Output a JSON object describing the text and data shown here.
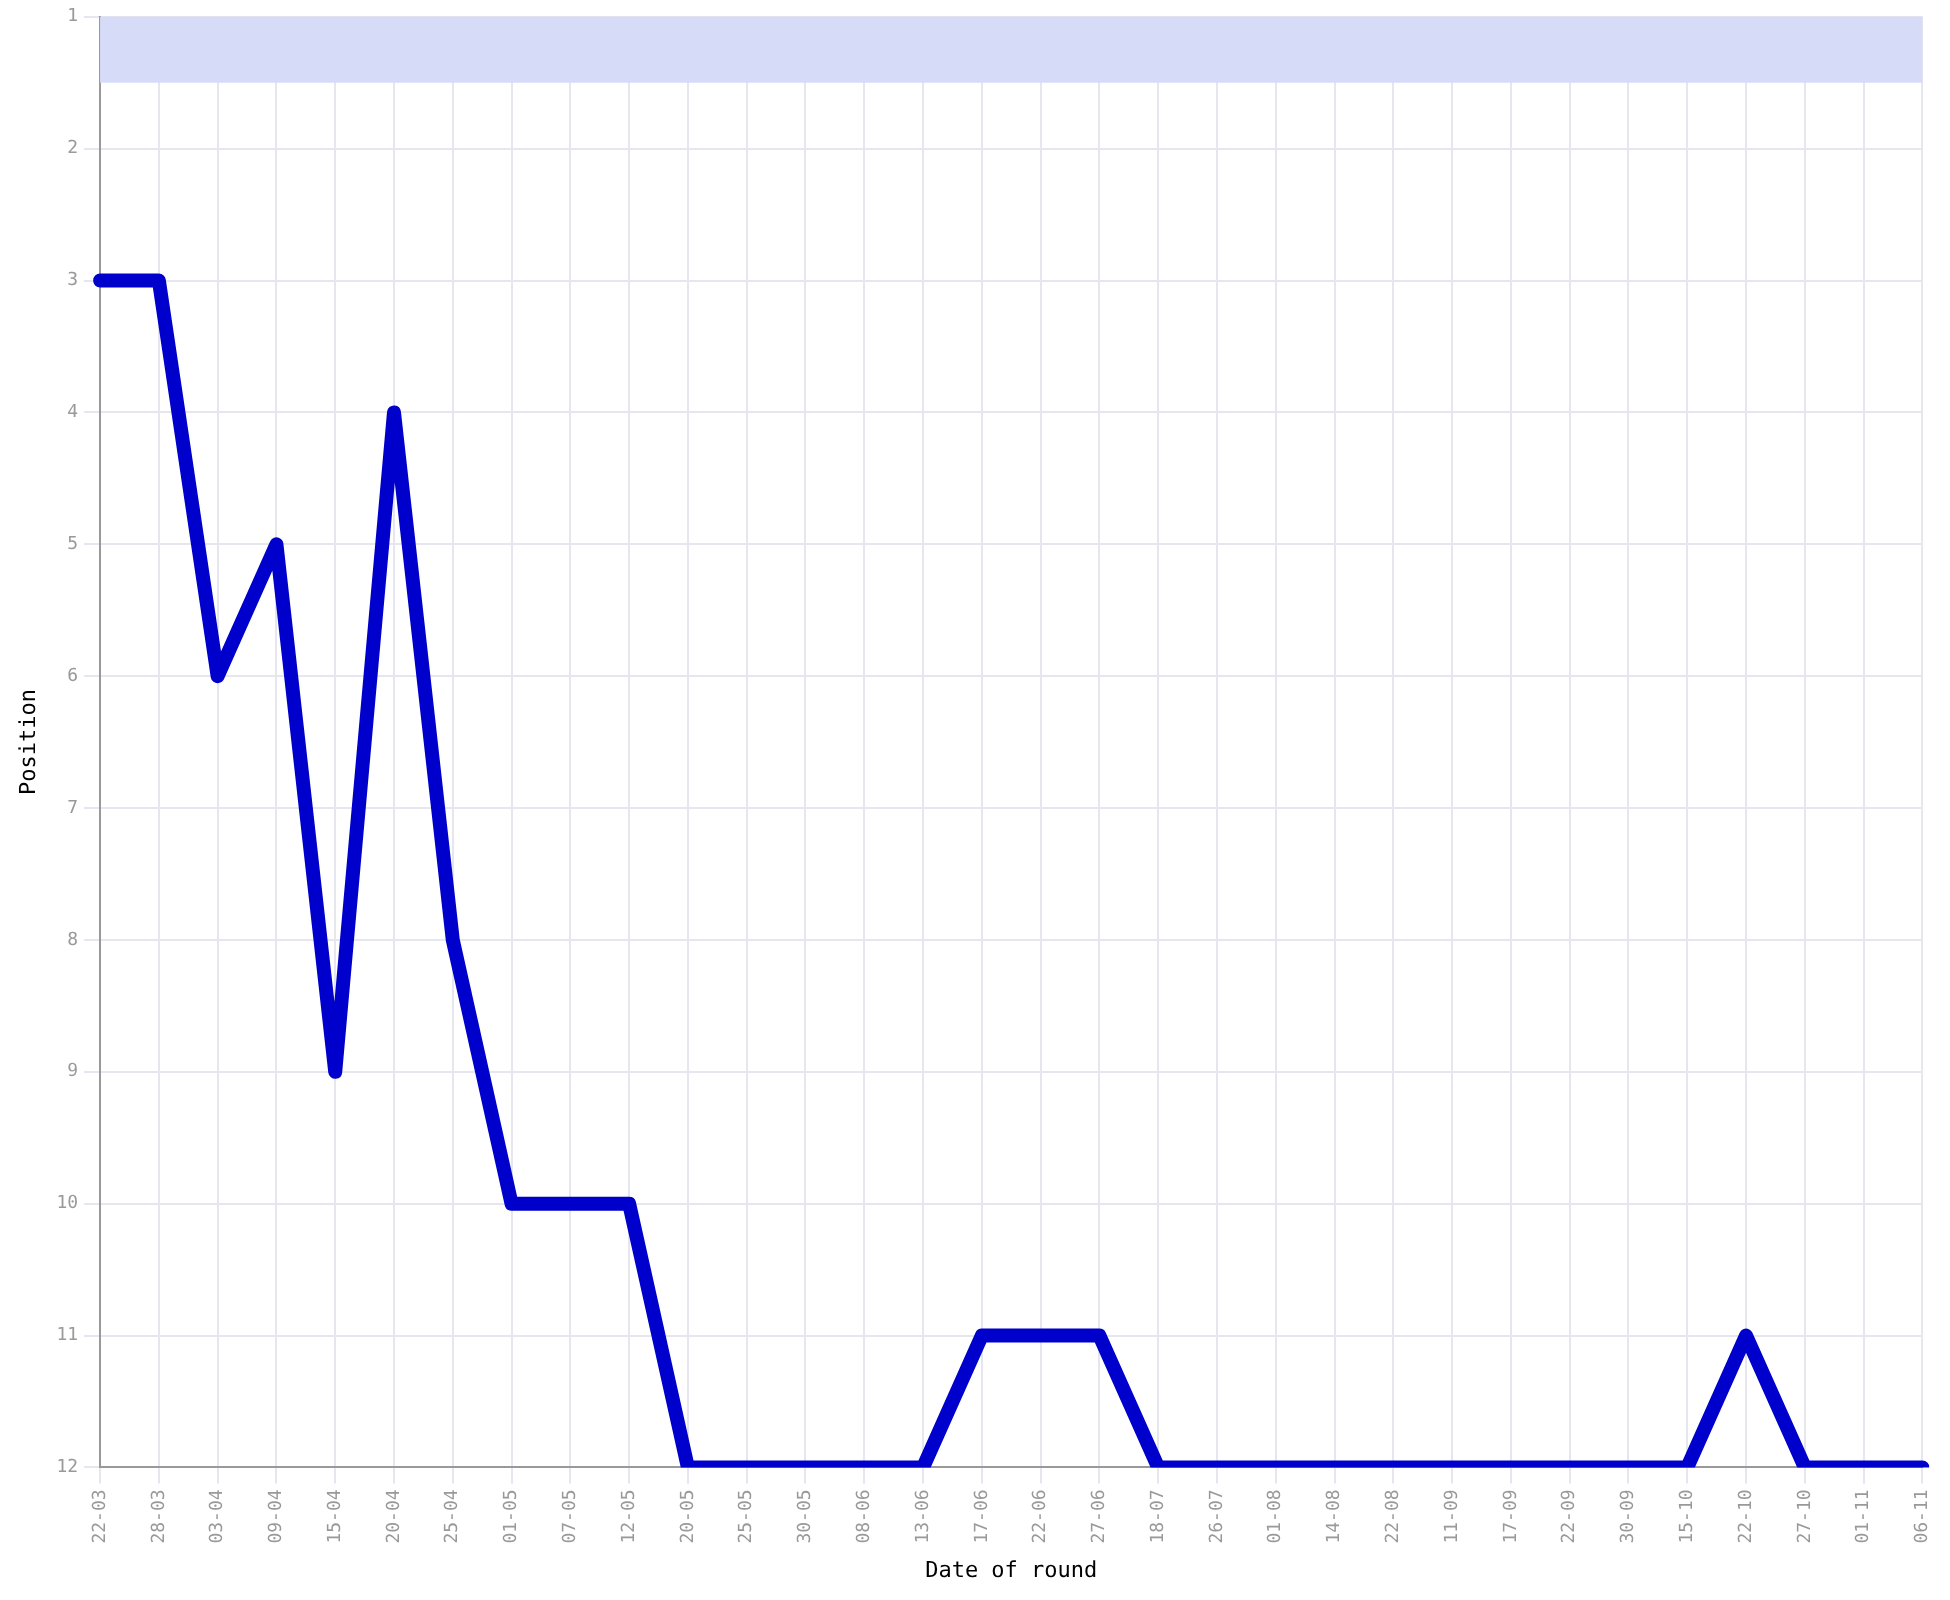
{
  "chart_data": {
    "type": "line",
    "xlabel": "Date of round",
    "ylabel": "Position",
    "categories": [
      "22-03",
      "28-03",
      "03-04",
      "09-04",
      "15-04",
      "20-04",
      "25-04",
      "01-05",
      "07-05",
      "12-05",
      "20-05",
      "25-05",
      "30-05",
      "08-06",
      "13-06",
      "17-06",
      "22-06",
      "27-06",
      "18-07",
      "26-07",
      "01-08",
      "14-08",
      "22-08",
      "11-09",
      "17-09",
      "22-09",
      "30-09",
      "15-10",
      "22-10",
      "27-10",
      "01-11",
      "06-11"
    ],
    "series": [
      {
        "color": "#0000cc",
        "values": [
          3,
          3,
          6,
          5,
          9,
          4,
          8,
          10,
          10,
          10,
          12,
          12,
          12,
          12,
          12,
          11,
          11,
          11,
          12,
          12,
          12,
          12,
          12,
          12,
          12,
          12,
          12,
          12,
          11,
          12,
          12,
          12
        ]
      }
    ],
    "ylim": [
      12,
      1
    ],
    "yticks": [
      1,
      2,
      3,
      4,
      5,
      6,
      7,
      8,
      9,
      10,
      11,
      12
    ],
    "bands": [
      {
        "axis": "y",
        "from": 1,
        "to": 1.5,
        "color": "#d6dcf8"
      }
    ],
    "grid": true,
    "legend": false,
    "marker": "none",
    "line_style": "solid"
  }
}
